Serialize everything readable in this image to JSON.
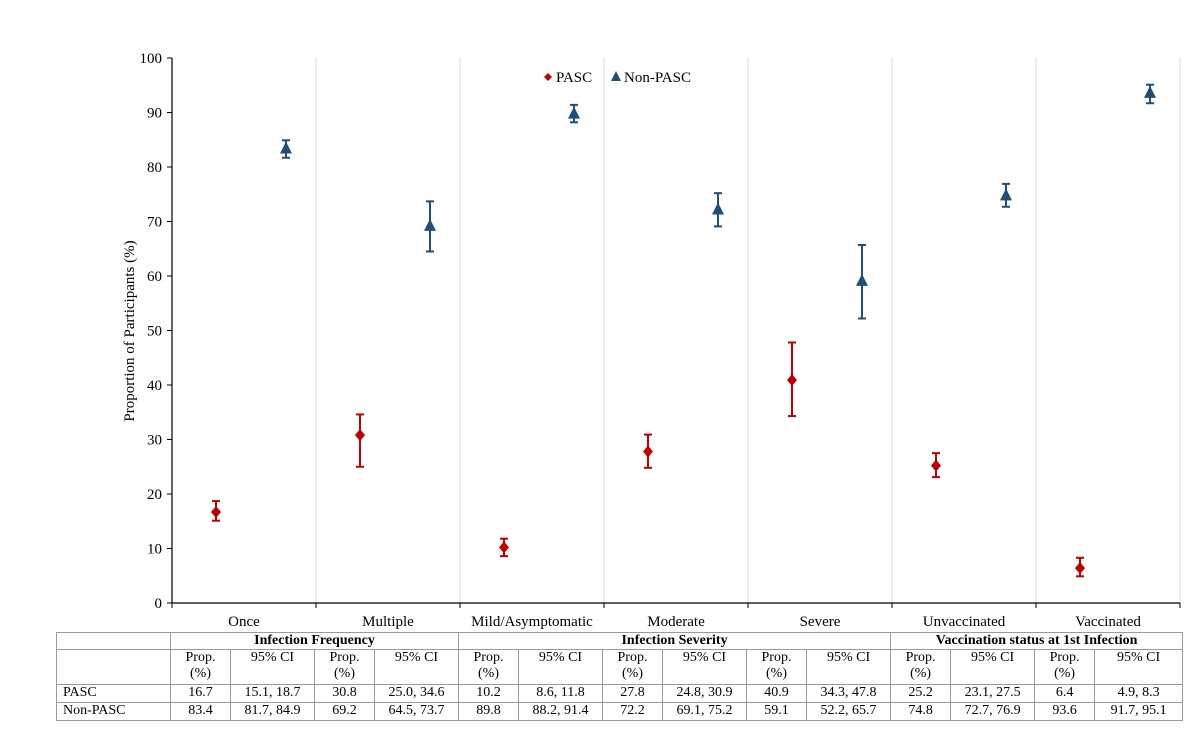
{
  "chart_data": {
    "type": "scatter",
    "title": "",
    "ylabel": "Proportion of Participants (%)",
    "xlabel": "",
    "ylim": [
      0,
      100
    ],
    "ytick_step": 10,
    "grid": "vertical separators between categories",
    "legend_position": "top-center",
    "categories": [
      "Once",
      "Multiple",
      "Mild/Asymptomatic",
      "Moderate",
      "Severe",
      "Unvaccinated",
      "Vaccinated"
    ],
    "series": [
      {
        "name": "PASC",
        "marker": "diamond",
        "color": "#c00000",
        "values": [
          16.7,
          30.8,
          10.2,
          27.8,
          40.9,
          25.2,
          6.4
        ],
        "ci_low": [
          15.1,
          25.0,
          8.6,
          24.8,
          34.3,
          23.1,
          4.9
        ],
        "ci_high": [
          18.7,
          34.6,
          11.8,
          30.9,
          47.8,
          27.5,
          8.3
        ]
      },
      {
        "name": "Non-PASC",
        "marker": "triangle",
        "color": "#1f4e79",
        "values": [
          83.4,
          69.2,
          89.8,
          72.2,
          59.1,
          74.8,
          93.6
        ],
        "ci_low": [
          81.7,
          64.5,
          88.2,
          69.1,
          52.2,
          72.7,
          91.7
        ],
        "ci_high": [
          84.9,
          73.7,
          91.4,
          75.2,
          65.7,
          76.9,
          95.1
        ]
      }
    ]
  },
  "table": {
    "groups": [
      "Infection Frequency",
      "Infection Severity",
      "Vaccination status at 1st Infection"
    ],
    "prop_header_1": "Prop.",
    "prop_header_2": "(%)",
    "ci_header": "95% CI",
    "rows": [
      {
        "label": "PASC",
        "cells": [
          "16.7",
          "15.1, 18.7",
          "30.8",
          "25.0, 34.6",
          "10.2",
          "8.6, 11.8",
          "27.8",
          "24.8, 30.9",
          "40.9",
          "34.3, 47.8",
          "25.2",
          "23.1, 27.5",
          "6.4",
          "4.9, 8.3"
        ]
      },
      {
        "label": "Non-PASC",
        "cells": [
          "83.4",
          "81.7, 84.9",
          "69.2",
          "64.5, 73.7",
          "89.8",
          "88.2, 91.4",
          "72.2",
          "69.1, 75.2",
          "59.1",
          "52.2, 65.7",
          "74.8",
          "72.7, 76.9",
          "93.6",
          "91.7, 95.1"
        ]
      }
    ]
  }
}
